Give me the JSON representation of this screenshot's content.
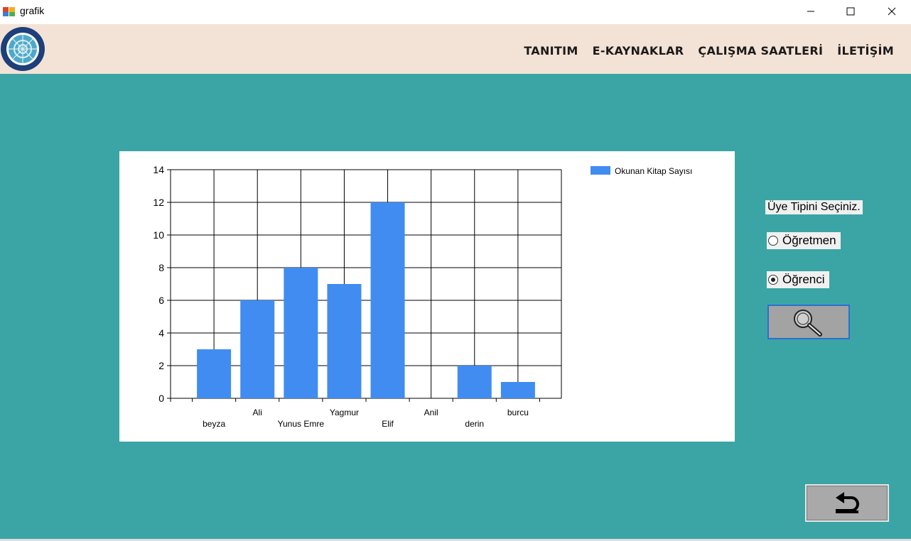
{
  "window": {
    "title": "grafik"
  },
  "nav": {
    "items": [
      "TANITIM",
      "E-KAYNAKLAR",
      "ÇALIŞMA SAATLERİ",
      "İLETİŞİM"
    ]
  },
  "controls": {
    "member_type_label": "Üye Tipini Seçiniz.",
    "radio_teacher": "Öğretmen",
    "radio_student": "Öğrenci",
    "selected": "Öğrenci"
  },
  "chart_data": {
    "type": "bar",
    "categories": [
      "beyza",
      "Ali",
      "Yunus Emre",
      "Yagmur",
      "Elif",
      "Anil",
      "derin",
      "burcu"
    ],
    "series": [
      {
        "name": "Okunan Kitap Sayısı",
        "values": [
          3,
          6,
          8,
          7,
          12,
          0,
          2,
          1
        ],
        "color": "#418cf0"
      }
    ],
    "ylim": [
      0,
      14
    ],
    "yticks": [
      0,
      2,
      4,
      6,
      8,
      10,
      12,
      14
    ],
    "grid": true,
    "legend_position": "top-right"
  },
  "colors": {
    "background": "#3ba5a5",
    "header": "#f3e3d6",
    "bar": "#418cf0"
  }
}
